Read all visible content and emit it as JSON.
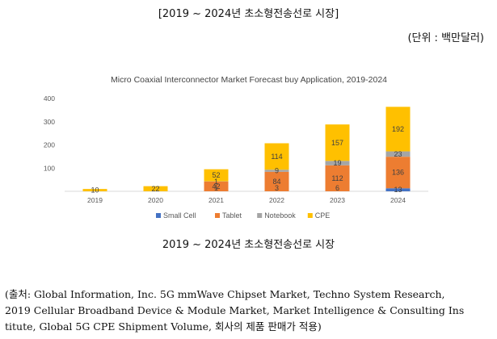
{
  "header": {
    "title": "[2019 ~ 2024년 초소형전송선로 시장]",
    "unit": "(단위 : 백만달러)"
  },
  "caption": "2019 ~ 2024년 초소형전송선로 시장",
  "source": {
    "line1": "(출처: Global Information, Inc. 5G mmWave Chipset Market, Techno System Research,",
    "line2": "2019 Cellular Broadband Device & Module Market, Market Intelligence & Consulting Ins",
    "line3": "titute, Global 5G CPE Shipment Volume, 회사의 제품 판매가 적용)"
  },
  "colors": {
    "small_cell": "#4472c4",
    "tablet": "#ed7d31",
    "notebook": "#a5a5a5",
    "cpe": "#ffc000"
  },
  "chart_data": {
    "type": "bar",
    "stacked": true,
    "title": "Micro Coaxial Interconnector Market Forecast buy Application, 2019-2024",
    "categories": [
      "2019",
      "2020",
      "2021",
      "2022",
      "2023",
      "2024"
    ],
    "ylim": [
      0,
      400
    ],
    "yticks": [
      100,
      200,
      300,
      400
    ],
    "series": [
      {
        "name": "Small Cell",
        "color": "#4472c4",
        "values": [
          0,
          0,
          0,
          0,
          0,
          13
        ],
        "labels": [
          "",
          "",
          "",
          "",
          "",
          "13"
        ]
      },
      {
        "name": "Tablet",
        "color": "#ed7d31",
        "values": [
          0,
          0,
          42,
          84,
          112,
          136
        ],
        "labels": [
          "",
          "",
          "42",
          "84",
          "112",
          "136"
        ]
      },
      {
        "name": "Notebook",
        "color": "#a5a5a5",
        "values": [
          0,
          0,
          1,
          9,
          19,
          23
        ],
        "labels": [
          "",
          "",
          "1",
          "9",
          "19",
          "23"
        ]
      },
      {
        "name": "CPE",
        "color": "#ffc000",
        "values": [
          10,
          22,
          52,
          114,
          157,
          192
        ],
        "labels": [
          "10",
          "22",
          "52",
          "114",
          "157",
          "192"
        ]
      }
    ],
    "extra_labels": [
      {
        "category": "2021",
        "text": "1"
      },
      {
        "category": "2022",
        "text": "3"
      },
      {
        "category": "2023",
        "text": "6"
      }
    ]
  }
}
